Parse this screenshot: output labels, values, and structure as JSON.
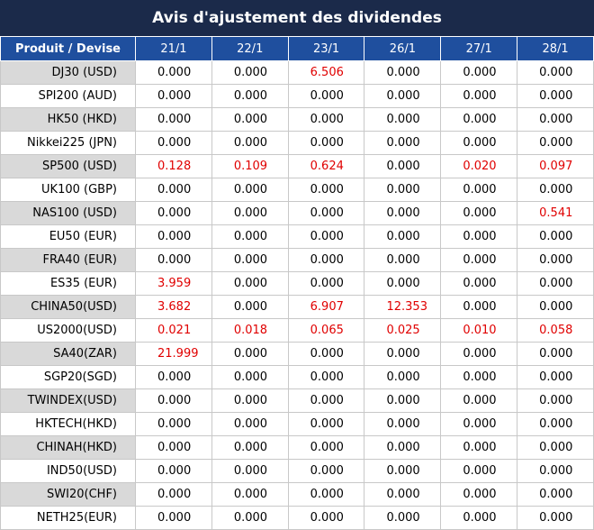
{
  "title": "Avis d'ajustement des dividendes",
  "highlight_color": "#e00000",
  "table": {
    "header": [
      "Produit / Devise",
      "21/1",
      "22/1",
      "23/1",
      "26/1",
      "27/1",
      "28/1"
    ],
    "rows": [
      [
        "DJ30 (USD)",
        "0.000",
        "0.000",
        "6.506",
        "0.000",
        "0.000",
        "0.000"
      ],
      [
        "SPI200 (AUD)",
        "0.000",
        "0.000",
        "0.000",
        "0.000",
        "0.000",
        "0.000"
      ],
      [
        "HK50 (HKD)",
        "0.000",
        "0.000",
        "0.000",
        "0.000",
        "0.000",
        "0.000"
      ],
      [
        "Nikkei225 (JPN)",
        "0.000",
        "0.000",
        "0.000",
        "0.000",
        "0.000",
        "0.000"
      ],
      [
        "SP500 (USD)",
        "0.128",
        "0.109",
        "0.624",
        "0.000",
        "0.020",
        "0.097"
      ],
      [
        "UK100 (GBP)",
        "0.000",
        "0.000",
        "0.000",
        "0.000",
        "0.000",
        "0.000"
      ],
      [
        "NAS100 (USD)",
        "0.000",
        "0.000",
        "0.000",
        "0.000",
        "0.000",
        "0.541"
      ],
      [
        "EU50 (EUR)",
        "0.000",
        "0.000",
        "0.000",
        "0.000",
        "0.000",
        "0.000"
      ],
      [
        "FRA40 (EUR)",
        "0.000",
        "0.000",
        "0.000",
        "0.000",
        "0.000",
        "0.000"
      ],
      [
        "ES35 (EUR)",
        "3.959",
        "0.000",
        "0.000",
        "0.000",
        "0.000",
        "0.000"
      ],
      [
        "CHINA50(USD)",
        "3.682",
        "0.000",
        "6.907",
        "12.353",
        "0.000",
        "0.000"
      ],
      [
        "US2000(USD)",
        "0.021",
        "0.018",
        "0.065",
        "0.025",
        "0.010",
        "0.058"
      ],
      [
        "SA40(ZAR)",
        "21.999",
        "0.000",
        "0.000",
        "0.000",
        "0.000",
        "0.000"
      ],
      [
        "SGP20(SGD)",
        "0.000",
        "0.000",
        "0.000",
        "0.000",
        "0.000",
        "0.000"
      ],
      [
        "TWINDEX(USD)",
        "0.000",
        "0.000",
        "0.000",
        "0.000",
        "0.000",
        "0.000"
      ],
      [
        "HKTECH(HKD)",
        "0.000",
        "0.000",
        "0.000",
        "0.000",
        "0.000",
        "0.000"
      ],
      [
        "CHINAH(HKD)",
        "0.000",
        "0.000",
        "0.000",
        "0.000",
        "0.000",
        "0.000"
      ],
      [
        "IND50(USD)",
        "0.000",
        "0.000",
        "0.000",
        "0.000",
        "0.000",
        "0.000"
      ],
      [
        "SWI20(CHF)",
        "0.000",
        "0.000",
        "0.000",
        "0.000",
        "0.000",
        "0.000"
      ],
      [
        "NETH25(EUR)",
        "0.000",
        "0.000",
        "0.000",
        "0.000",
        "0.000",
        "0.000"
      ]
    ]
  }
}
